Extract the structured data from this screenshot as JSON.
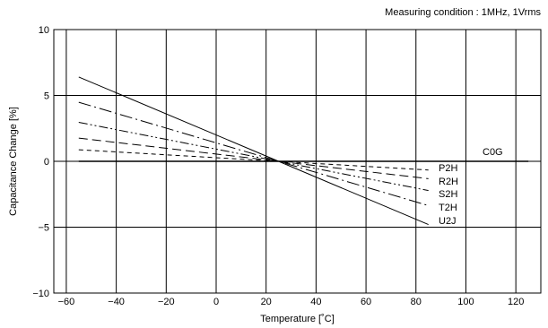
{
  "measuring_condition": "Measuring condition : 1MHz, 1Vrms",
  "chart_data": {
    "type": "line",
    "title": "",
    "xlabel": "Temperature [˚C]",
    "ylabel": "Capacitance Change [%]",
    "xlim": [
      -65,
      130
    ],
    "ylim": [
      -10,
      10
    ],
    "xticks": [
      -60,
      -40,
      -20,
      0,
      20,
      40,
      60,
      80,
      100,
      120
    ],
    "yticks": [
      10,
      5,
      0,
      -5,
      -10
    ],
    "ytick_labels": [
      "10",
      "5",
      "0",
      "−5",
      "−10"
    ],
    "xtick_labels": [
      "−60",
      "−40",
      "−20",
      "0",
      "20",
      "40",
      "60",
      "80",
      "100",
      "120"
    ],
    "grid": true,
    "series": [
      {
        "name": "C0G",
        "dash": "solid",
        "x": [
          -55,
          125
        ],
        "y": [
          0,
          0
        ]
      },
      {
        "name": "P2H",
        "dash": "short-dash",
        "x": [
          -55,
          25,
          85
        ],
        "y": [
          0.88,
          0,
          -0.66
        ]
      },
      {
        "name": "R2H",
        "dash": "dash",
        "x": [
          -55,
          25,
          85
        ],
        "y": [
          1.76,
          0,
          -1.32
        ]
      },
      {
        "name": "S2H",
        "dash": "dash-dot-dot",
        "x": [
          -55,
          25,
          85
        ],
        "y": [
          2.96,
          0,
          -2.22
        ]
      },
      {
        "name": "T2H",
        "dash": "dash-dot",
        "x": [
          -55,
          25,
          85
        ],
        "y": [
          4.48,
          0,
          -3.36
        ]
      },
      {
        "name": "U2J",
        "dash": "solid",
        "x": [
          -55,
          25,
          85
        ],
        "y": [
          6.4,
          0,
          -4.8
        ]
      }
    ]
  }
}
